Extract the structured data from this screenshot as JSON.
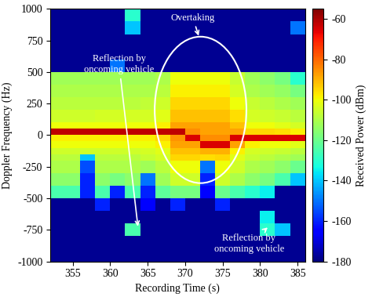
{
  "chart_data": {
    "type": "heatmap",
    "xlabel": "Recording Time (s)",
    "ylabel": "Doppler Frequency (Hz)",
    "x_edges": [
      352,
      354,
      356,
      358,
      360,
      362,
      364,
      366,
      368,
      370,
      372,
      374,
      376,
      378,
      380,
      382,
      384,
      386
    ],
    "y_edges": [
      -1000,
      -900,
      -800,
      -700,
      -600,
      -500,
      -400,
      -300,
      -200,
      -150,
      -100,
      -50,
      0,
      50,
      100,
      150,
      200,
      300,
      400,
      500,
      600,
      700,
      800,
      900,
      1000
    ],
    "cells": [
      [
        -178,
        -178,
        -178,
        -178,
        -178,
        -178,
        -178,
        -178,
        -178,
        -178,
        -178,
        -178,
        -178,
        -178,
        -178,
        -178,
        -178
      ],
      [
        -178,
        -178,
        -178,
        -178,
        -178,
        -178,
        -178,
        -178,
        -178,
        -178,
        -178,
        -178,
        -178,
        -178,
        -178,
        -178,
        -178
      ],
      [
        -178,
        -178,
        -178,
        -178,
        -178,
        -125,
        -178,
        -178,
        -178,
        -178,
        -178,
        -178,
        -178,
        -178,
        -130,
        -140,
        -178
      ],
      [
        -178,
        -178,
        -178,
        -178,
        -178,
        -178,
        -178,
        -178,
        -178,
        -178,
        -178,
        -178,
        -178,
        -178,
        -135,
        -178,
        -178
      ],
      [
        -178,
        -178,
        -178,
        -160,
        -178,
        -178,
        -165,
        -178,
        -160,
        -178,
        -178,
        -160,
        -178,
        -178,
        -178,
        -178,
        -178
      ],
      [
        -125,
        -125,
        -160,
        -125,
        -160,
        -125,
        -160,
        -122,
        -118,
        -118,
        -165,
        -120,
        -125,
        -130,
        -135,
        -178,
        -178
      ],
      [
        -115,
        -115,
        -160,
        -115,
        -118,
        -115,
        -150,
        -112,
        -105,
        -105,
        -160,
        -105,
        -110,
        -115,
        -118,
        -125,
        -140
      ],
      [
        -110,
        -110,
        -155,
        -110,
        -110,
        -110,
        -112,
        -108,
        -100,
        -100,
        -150,
        -100,
        -105,
        -110,
        -112,
        -115,
        -120
      ],
      [
        -108,
        -108,
        -140,
        -108,
        -108,
        -108,
        -106,
        -104,
        -95,
        -95,
        -96,
        -95,
        -102,
        -106,
        -108,
        -110,
        -112
      ],
      [
        -105,
        -105,
        -105,
        -105,
        -105,
        -105,
        -104,
        -102,
        -92,
        -92,
        -90,
        -90,
        -98,
        -104,
        -105,
        -106,
        -108
      ],
      [
        -100,
        -100,
        -100,
        -100,
        -100,
        -100,
        -100,
        -98,
        -88,
        -88,
        -65,
        -65,
        -88,
        -98,
        -100,
        -100,
        -102
      ],
      [
        -98,
        -98,
        -98,
        -98,
        -98,
        -98,
        -98,
        -95,
        -86,
        -65,
        -85,
        -85,
        -65,
        -65,
        -65,
        -65,
        -65
      ],
      [
        -62,
        -62,
        -62,
        -62,
        -62,
        -62,
        -62,
        -62,
        -62,
        -85,
        -88,
        -88,
        -88,
        -95,
        -95,
        -96,
        -98
      ],
      [
        -100,
        -100,
        -100,
        -100,
        -100,
        -100,
        -100,
        -98,
        -88,
        -88,
        -88,
        -88,
        -92,
        -100,
        -100,
        -102,
        -104
      ],
      [
        -105,
        -105,
        -105,
        -104,
        -104,
        -104,
        -104,
        -102,
        -92,
        -92,
        -92,
        -92,
        -96,
        -104,
        -105,
        -106,
        -108
      ],
      [
        -105,
        -105,
        -105,
        -104,
        -104,
        -104,
        -104,
        -102,
        -92,
        -92,
        -92,
        -92,
        -96,
        -104,
        -105,
        -106,
        -108
      ],
      [
        -108,
        -108,
        -108,
        -108,
        -108,
        -108,
        -107,
        -105,
        -95,
        -95,
        -95,
        -95,
        -100,
        -106,
        -108,
        -110,
        -112
      ],
      [
        -110,
        -110,
        -110,
        -110,
        -110,
        -110,
        -110,
        -108,
        -98,
        -98,
        -98,
        -98,
        -104,
        -110,
        -112,
        -114,
        -118
      ],
      [
        -112,
        -112,
        -112,
        -112,
        -112,
        -112,
        -112,
        -110,
        -100,
        -100,
        -100,
        -100,
        -106,
        -112,
        -115,
        -118,
        -130
      ],
      [
        -178,
        -178,
        -178,
        -178,
        -150,
        -178,
        -178,
        -178,
        -178,
        -178,
        -178,
        -178,
        -178,
        -178,
        -178,
        -178,
        -178
      ],
      [
        -178,
        -178,
        -178,
        -178,
        -178,
        -178,
        -178,
        -178,
        -178,
        -178,
        -178,
        -178,
        -178,
        -178,
        -178,
        -178,
        -178
      ],
      [
        -178,
        -178,
        -178,
        -178,
        -178,
        -178,
        -178,
        -178,
        -178,
        -178,
        -178,
        -178,
        -178,
        -178,
        -178,
        -178,
        -178
      ],
      [
        -178,
        -178,
        -178,
        -178,
        -178,
        -140,
        -178,
        -178,
        -178,
        -178,
        -178,
        -178,
        -178,
        -178,
        -178,
        -178,
        -150
      ],
      [
        -178,
        -178,
        -178,
        -178,
        -178,
        -130,
        -178,
        -178,
        -178,
        -178,
        -178,
        -178,
        -178,
        -178,
        -178,
        -178,
        -178
      ]
    ],
    "xlim": [
      352,
      386
    ],
    "ylim": [
      -1000,
      1000
    ],
    "xticks": [
      355,
      360,
      365,
      370,
      375,
      380,
      385
    ],
    "yticks": [
      -1000,
      -750,
      -500,
      -250,
      0,
      250,
      500,
      750,
      1000
    ],
    "colorbar": {
      "label": "Received Power (dBm)",
      "range": [
        -180,
        -55
      ],
      "ticks": [
        -180,
        -160,
        -140,
        -120,
        -100,
        -80,
        -60
      ]
    },
    "annotations": [
      "Overtaking",
      "Reflection by\noncoming vehicle",
      "Reflection by\noncoming vehicle"
    ]
  }
}
